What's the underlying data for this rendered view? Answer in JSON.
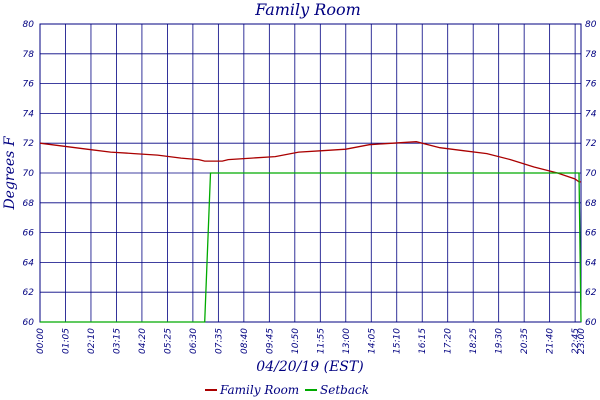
{
  "chart_data": {
    "type": "line",
    "title": "Family Room",
    "xlabel": "04/20/19 (EST)",
    "ylabel": "Degrees F",
    "ylim": [
      60,
      80
    ],
    "yticks": [
      60,
      62,
      64,
      66,
      68,
      70,
      72,
      74,
      76,
      78,
      80
    ],
    "xlim": [
      "00:00",
      "23:00"
    ],
    "xticks": [
      "00:00",
      "01:05",
      "02:10",
      "03:15",
      "04:20",
      "05:25",
      "06:30",
      "07:35",
      "08:40",
      "09:45",
      "10:50",
      "11:55",
      "13:00",
      "14:05",
      "15:10",
      "16:15",
      "17:20",
      "18:25",
      "19:30",
      "20:35",
      "21:40",
      "22:45",
      "23:00"
    ],
    "grid": true,
    "legend": "bottom",
    "x": [
      "00:00",
      "01:00",
      "02:00",
      "03:00",
      "04:00",
      "05:00",
      "06:00",
      "06:45",
      "07:00",
      "07:15",
      "07:30",
      "07:45",
      "08:00",
      "09:00",
      "10:00",
      "11:00",
      "12:00",
      "13:00",
      "14:00",
      "15:00",
      "16:00",
      "17:00",
      "18:00",
      "19:00",
      "20:00",
      "21:00",
      "22:00",
      "22:45",
      "22:55",
      "23:00"
    ],
    "series": [
      {
        "name": "Family Room",
        "color": "#aa0000",
        "values": [
          72.0,
          71.8,
          71.6,
          71.4,
          71.3,
          71.2,
          71.0,
          70.9,
          70.8,
          70.8,
          70.8,
          70.8,
          70.9,
          71.0,
          71.1,
          71.4,
          71.5,
          71.6,
          71.9,
          72.0,
          72.1,
          71.7,
          71.5,
          71.3,
          70.9,
          70.4,
          70.0,
          69.6,
          69.4,
          69.4
        ]
      },
      {
        "name": "Setback",
        "color": "#00aa00",
        "values": [
          60,
          60,
          60,
          60,
          60,
          60,
          60,
          60,
          60,
          70,
          70,
          70,
          70,
          70,
          70,
          70,
          70,
          70,
          70,
          70,
          70,
          70,
          70,
          70,
          70,
          70,
          70,
          70,
          70,
          60
        ]
      }
    ]
  }
}
